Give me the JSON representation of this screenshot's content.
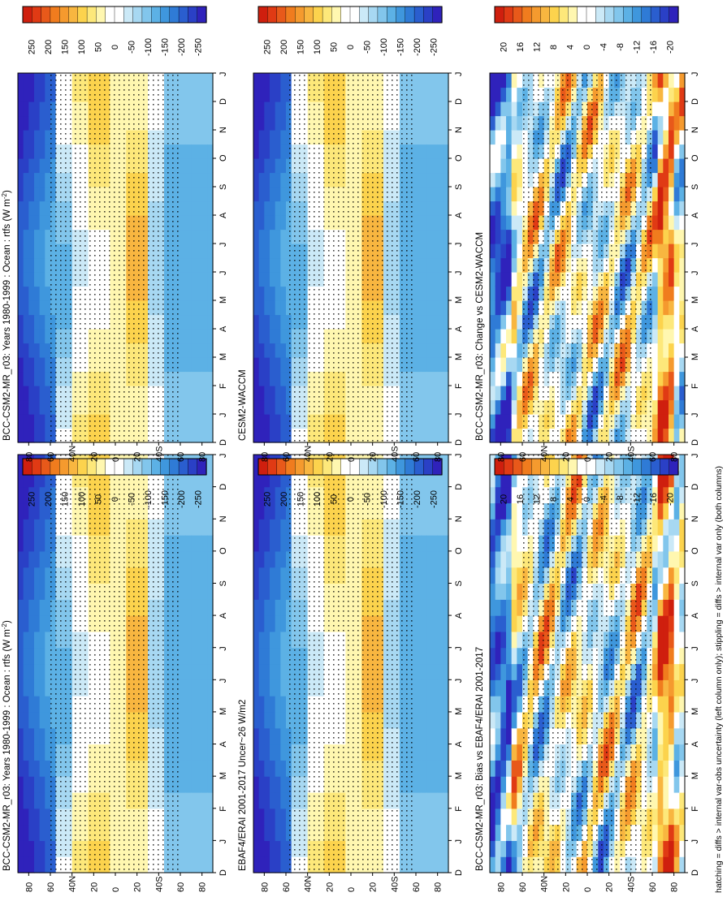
{
  "footnote": "hatching = diffs > internal var-obs uncertainty (left column only); stippling = diffs > internal var only (both columns)",
  "colors": {
    "warm_palette": [
      "#ffffff",
      "#fff7b0",
      "#fde87a",
      "#fcd34d",
      "#f8b640",
      "#f59a2e",
      "#f07c1e",
      "#e8591a",
      "#e03a14",
      "#cf1f0e"
    ],
    "cool_palette": [
      "#ffffff",
      "#cbe9f7",
      "#a7d8f2",
      "#82c6ec",
      "#5cb1e5",
      "#3f97dd",
      "#2f7bd6",
      "#2a5ecf",
      "#2a40c6",
      "#2f22bb"
    ]
  },
  "chart_data": [
    {
      "type": "heatmap",
      "title": "BCC-CSM2-MR_r03: Years 1980-1999 : Ocean : rtfs (W m",
      "title_sup": "-2",
      "title_end": ")",
      "x_ticks": [
        "D",
        "J",
        "F",
        "M",
        "A",
        "M",
        "J",
        "J",
        "A",
        "S",
        "O",
        "N",
        "D",
        "J"
      ],
      "y_ticks": [
        "80",
        "60",
        "40N",
        "20",
        "0",
        "20",
        "40S",
        "60",
        "80"
      ],
      "colorbar_ticks": [
        "250",
        "200",
        "150",
        "100",
        "50",
        "0",
        "-50",
        "-100",
        "-150",
        "-200",
        "-250"
      ],
      "field": "climatology"
    },
    {
      "type": "heatmap",
      "title": "EBAF4/ERAI 2001-2017 Uncer~26 W/m2",
      "x_ticks": [
        "D",
        "J",
        "F",
        "M",
        "A",
        "M",
        "J",
        "J",
        "A",
        "S",
        "O",
        "N",
        "D",
        "J"
      ],
      "y_ticks": [
        "80",
        "60",
        "40N",
        "20",
        "0",
        "20",
        "40S",
        "60",
        "80"
      ],
      "colorbar_ticks": [
        "250",
        "200",
        "150",
        "100",
        "50",
        "0",
        "-50",
        "-100",
        "-150",
        "-200",
        "-250"
      ],
      "field": "climatology"
    },
    {
      "type": "heatmap",
      "title": "BCC-CSM2-MR_r03: Bias vs EBAF4/ERAI 2001-2017",
      "x_ticks": [
        "D",
        "J",
        "F",
        "M",
        "A",
        "M",
        "J",
        "J",
        "A",
        "S",
        "O",
        "N",
        "D",
        "J"
      ],
      "y_ticks": [
        "80",
        "60",
        "40N",
        "20",
        "0",
        "20",
        "40S",
        "60",
        "80"
      ],
      "colorbar_ticks": [
        "20",
        "16",
        "12",
        "8",
        "4",
        "0",
        "-4",
        "-8",
        "-12",
        "-16",
        "-20"
      ],
      "field": "difference"
    },
    {
      "type": "heatmap",
      "title": "BCC-CSM2-MR_r03: Years 1980-1999 : Ocean : rtfs (W m",
      "title_sup": "-2",
      "title_end": ")",
      "x_ticks": [
        "D",
        "J",
        "F",
        "M",
        "A",
        "M",
        "J",
        "J",
        "A",
        "S",
        "O",
        "N",
        "D",
        "J"
      ],
      "y_ticks": [
        "80",
        "60",
        "40N",
        "20",
        "0",
        "20",
        "40S",
        "60",
        "80"
      ],
      "colorbar_ticks": [
        "250",
        "200",
        "150",
        "100",
        "50",
        "0",
        "-50",
        "-100",
        "-150",
        "-200",
        "-250"
      ],
      "field": "climatology"
    },
    {
      "type": "heatmap",
      "title": "CESM2-WACCM",
      "x_ticks": [
        "D",
        "J",
        "F",
        "M",
        "A",
        "M",
        "J",
        "J",
        "A",
        "S",
        "O",
        "N",
        "D",
        "J"
      ],
      "y_ticks": [
        "80",
        "60",
        "40N",
        "20",
        "0",
        "20",
        "40S",
        "60",
        "80"
      ],
      "colorbar_ticks": [
        "250",
        "200",
        "150",
        "100",
        "50",
        "0",
        "-50",
        "-100",
        "-150",
        "-200",
        "-250"
      ],
      "field": "climatology"
    },
    {
      "type": "heatmap",
      "title": "BCC-CSM2-MR_r03: Change vs CESM2-WACCM",
      "x_ticks": [
        "D",
        "J",
        "F",
        "M",
        "A",
        "M",
        "J",
        "J",
        "A",
        "S",
        "O",
        "N",
        "D",
        "J"
      ],
      "y_ticks": [
        "80",
        "60",
        "40N",
        "20",
        "0",
        "20",
        "40S",
        "60",
        "80"
      ],
      "colorbar_ticks": [
        "20",
        "16",
        "12",
        "8",
        "4",
        "0",
        "-4",
        "-8",
        "-12",
        "-16",
        "-20"
      ],
      "field": "difference"
    }
  ]
}
